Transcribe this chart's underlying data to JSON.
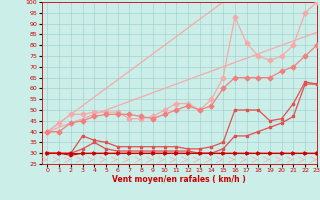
{
  "xlabel": "Vent moyen/en rafales ( km/h )",
  "background_color": "#cceee8",
  "grid_color": "#99cccc",
  "x": [
    0,
    1,
    2,
    3,
    4,
    5,
    6,
    7,
    8,
    9,
    10,
    11,
    12,
    13,
    14,
    15,
    16,
    17,
    18,
    19,
    20,
    21,
    22,
    23
  ],
  "line_diag_upper": [
    40,
    44,
    48,
    52,
    56,
    60,
    64,
    68,
    72,
    76,
    80,
    84,
    88,
    92,
    96,
    100,
    100,
    100,
    100,
    100,
    100,
    100,
    100,
    100
  ],
  "line_diag_mid": [
    40,
    42,
    44,
    46,
    48,
    50,
    52,
    54,
    56,
    58,
    60,
    62,
    64,
    66,
    68,
    70,
    72,
    74,
    76,
    78,
    80,
    82,
    84,
    86
  ],
  "line_pink_zigzag": [
    40,
    44,
    48,
    48,
    49,
    49,
    49,
    46,
    46,
    47,
    50,
    53,
    53,
    50,
    55,
    65,
    93,
    81,
    75,
    73,
    75,
    80,
    95,
    100
  ],
  "line_pink_lower": [
    40,
    40,
    44,
    45,
    47,
    48,
    48,
    48,
    47,
    46,
    48,
    50,
    52,
    50,
    52,
    60,
    65,
    65,
    65,
    65,
    68,
    70,
    75,
    80
  ],
  "line_med1": [
    30,
    30,
    30,
    38,
    36,
    35,
    33,
    33,
    33,
    33,
    33,
    33,
    32,
    32,
    33,
    35,
    50,
    50,
    50,
    45,
    46,
    53,
    63,
    62
  ],
  "line_med2": [
    30,
    30,
    30,
    32,
    35,
    32,
    31,
    31,
    31,
    31,
    31,
    31,
    31,
    30,
    30,
    32,
    38,
    38,
    40,
    42,
    44,
    47,
    62,
    62
  ],
  "line_dark1": [
    30,
    30,
    29,
    30,
    30,
    30,
    30,
    30,
    30,
    30,
    30,
    30,
    30,
    30,
    30,
    30,
    30,
    30,
    30,
    30,
    30,
    30,
    30,
    30
  ],
  "line_dark2": [
    30,
    30,
    30,
    30,
    30,
    30,
    30,
    30,
    30,
    30,
    30,
    30,
    30,
    30,
    30,
    30,
    30,
    30,
    30,
    30,
    30,
    30,
    30,
    30
  ],
  "line_wind_arrows": [
    27,
    27,
    27,
    27,
    27,
    27,
    27,
    27,
    27,
    27,
    27,
    27,
    27,
    27,
    27,
    27,
    27,
    27,
    27,
    27,
    27,
    27,
    27,
    27
  ],
  "colors": {
    "light_pink": "#f5aaaa",
    "salmon": "#f08080",
    "medium_red": "#e05050",
    "dark_red": "#cc0000"
  },
  "ylim": [
    25,
    100
  ],
  "xlim": [
    -0.5,
    23
  ],
  "yticks": [
    25,
    30,
    35,
    40,
    45,
    50,
    55,
    60,
    65,
    70,
    75,
    80,
    85,
    90,
    95,
    100
  ],
  "xticks": [
    0,
    1,
    2,
    3,
    4,
    5,
    6,
    7,
    8,
    9,
    10,
    11,
    12,
    13,
    14,
    15,
    16,
    17,
    18,
    19,
    20,
    21,
    22,
    23
  ]
}
